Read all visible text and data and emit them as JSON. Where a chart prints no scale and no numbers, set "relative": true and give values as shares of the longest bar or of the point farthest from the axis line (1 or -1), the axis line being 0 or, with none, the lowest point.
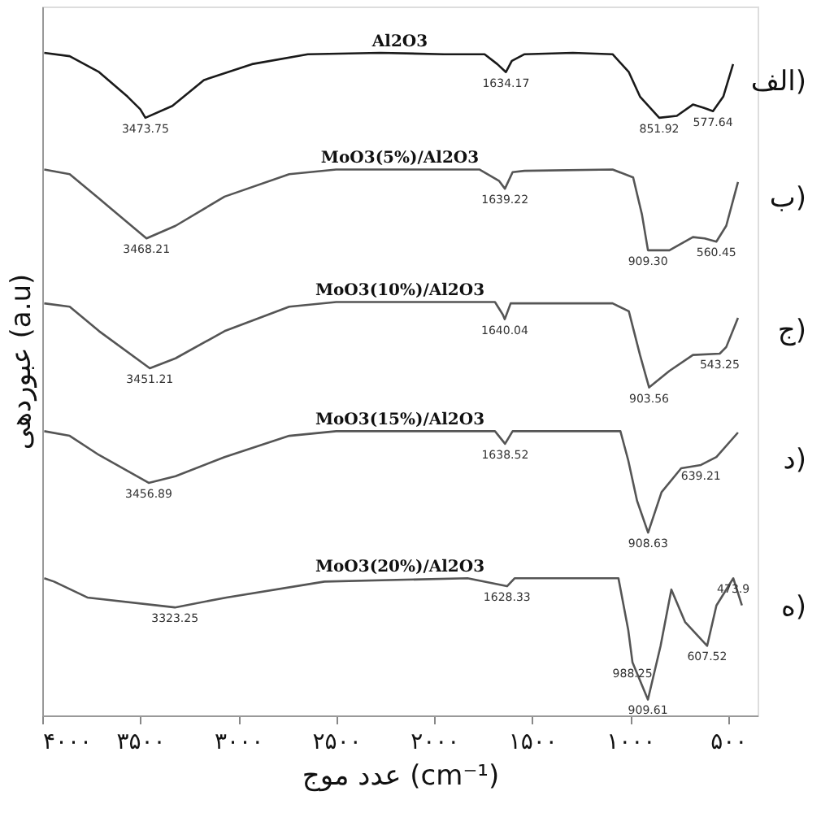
{
  "chart_data": {
    "type": "line",
    "relative": true,
    "xlabel": "عدد موج (cm⁻¹)",
    "ylabel": "عبوردهی (a.u)",
    "xlim": [
      4000,
      350
    ],
    "xticks": [
      {
        "value": 4000,
        "label": "۴۰۰۰"
      },
      {
        "value": 3500,
        "label": "۳۵۰۰"
      },
      {
        "value": 3000,
        "label": "۳۰۰۰"
      },
      {
        "value": 2500,
        "label": "۲۵۰۰"
      },
      {
        "value": 2000,
        "label": "۲۰۰۰"
      },
      {
        "value": 1500,
        "label": "۱۵۰۰"
      },
      {
        "value": 1000,
        "label": "۱۰۰۰"
      },
      {
        "value": 500,
        "label": "۵۰۰"
      }
    ],
    "grid": false,
    "marker": "none",
    "line_style": "solid",
    "series": [
      {
        "name": "Al2O3",
        "color": "#1a1a1a",
        "x": [
          3990,
          3860,
          3710,
          3565,
          3500,
          3473.75,
          3336,
          3175,
          2930,
          2645,
          2275,
          1950,
          1743,
          1678,
          1634.17,
          1604,
          1539,
          1293,
          1090,
          1007,
          950,
          851.92,
          762,
          680,
          623,
          577.64,
          525,
          475
        ],
        "values": [
          1.0,
          0.995,
          0.971,
          0.934,
          0.915,
          0.902,
          0.92,
          0.959,
          0.983,
          0.998,
          1.0,
          0.998,
          0.998,
          0.983,
          0.971,
          0.988,
          0.998,
          1.0,
          0.998,
          0.971,
          0.934,
          0.902,
          0.905,
          0.922,
          0.917,
          0.912,
          0.934,
          0.983
        ]
      },
      {
        "name": "MoO3(5%)/Al2O3",
        "color": "#555555",
        "x": [
          3990,
          3860,
          3710,
          3468.21,
          3320,
          3070,
          2740,
          2500,
          1770,
          1670,
          1639.22,
          1600,
          1540,
          1090,
          985,
          940,
          909.3,
          800,
          680,
          620,
          560.45,
          510,
          450
        ],
        "values": [
          0.824,
          0.817,
          0.78,
          0.72,
          0.739,
          0.783,
          0.817,
          0.824,
          0.824,
          0.807,
          0.795,
          0.82,
          0.822,
          0.824,
          0.812,
          0.756,
          0.702,
          0.702,
          0.722,
          0.72,
          0.715,
          0.739,
          0.805
        ]
      },
      {
        "name": "MoO3(10%)/Al2O3",
        "color": "#555555",
        "x": [
          3990,
          3860,
          3710,
          3451.21,
          3320,
          3070,
          2740,
          2500,
          1690,
          1650,
          1640.04,
          1610,
          1090,
          1007,
          950,
          903.56,
          800,
          680,
          543.25,
          510,
          450
        ],
        "values": [
          0.622,
          0.617,
          0.58,
          0.524,
          0.539,
          0.58,
          0.617,
          0.624,
          0.624,
          0.605,
          0.598,
          0.622,
          0.622,
          0.61,
          0.544,
          0.495,
          0.52,
          0.544,
          0.546,
          0.556,
          0.6
        ]
      },
      {
        "name": "MoO3(15%)/Al2O3",
        "color": "#555555",
        "x": [
          3990,
          3860,
          3710,
          3456.89,
          3320,
          3070,
          2740,
          2500,
          1690,
          1638.52,
          1600,
          1050,
          1010,
          965,
          908.63,
          840,
          740,
          639.21,
          560,
          450
        ],
        "values": [
          0.429,
          0.422,
          0.393,
          0.351,
          0.361,
          0.39,
          0.422,
          0.429,
          0.429,
          0.41,
          0.429,
          0.429,
          0.385,
          0.324,
          0.276,
          0.337,
          0.373,
          0.378,
          0.39,
          0.427
        ]
      },
      {
        "name": "MoO3(20%)/Al2O3",
        "color": "#555555",
        "x": [
          3990,
          3940,
          3770,
          3323.25,
          3060,
          2560,
          1830,
          1628.33,
          1590,
          1060,
          1010,
          988.25,
          909.61,
          845,
          790,
          720,
          607.52,
          560,
          473.9,
          430
        ],
        "values": [
          0.207,
          0.202,
          0.178,
          0.163,
          0.178,
          0.202,
          0.207,
          0.195,
          0.207,
          0.207,
          0.129,
          0.08,
          0.024,
          0.105,
          0.19,
          0.141,
          0.105,
          0.166,
          0.207,
          0.166
        ]
      }
    ],
    "annotations": [
      {
        "text": "3473.75",
        "x": 3473.75,
        "y": 0.902
      },
      {
        "text": "1634.17",
        "x": 1634.17,
        "y": 0.971
      },
      {
        "text": "851.92",
        "x": 851.92,
        "y": 0.902
      },
      {
        "text": "577.64",
        "x": 577.64,
        "y": 0.912
      },
      {
        "text": "3468.21",
        "x": 3468.21,
        "y": 0.72
      },
      {
        "text": "1639.22",
        "x": 1639.22,
        "y": 0.795
      },
      {
        "text": "909.30",
        "x": 909.3,
        "y": 0.702
      },
      {
        "text": "560.45",
        "x": 560.45,
        "y": 0.715
      },
      {
        "text": "3451.21",
        "x": 3451.21,
        "y": 0.524
      },
      {
        "text": "1640.04",
        "x": 1640.04,
        "y": 0.598
      },
      {
        "text": "903.56",
        "x": 903.56,
        "y": 0.495
      },
      {
        "text": "543.25",
        "x": 543.25,
        "y": 0.546
      },
      {
        "text": "3456.89",
        "x": 3456.89,
        "y": 0.351
      },
      {
        "text": "1638.52",
        "x": 1638.52,
        "y": 0.41
      },
      {
        "text": "908.63",
        "x": 908.63,
        "y": 0.276
      },
      {
        "text": "639.21",
        "x": 639.21,
        "y": 0.378
      },
      {
        "text": "3323.25",
        "x": 3323.25,
        "y": 0.163
      },
      {
        "text": "1628.33",
        "x": 1628.33,
        "y": 0.195
      },
      {
        "text": "988.25",
        "x": 988.25,
        "y": 0.08
      },
      {
        "text": "909.61",
        "x": 909.61,
        "y": 0.024
      },
      {
        "text": "607.52",
        "x": 607.52,
        "y": 0.105
      },
      {
        "text": "473.9",
        "x": 473.9,
        "y": 0.207
      },
      "الف)",
      "ب)",
      "ج)",
      "د)",
      "ه)"
    ]
  }
}
